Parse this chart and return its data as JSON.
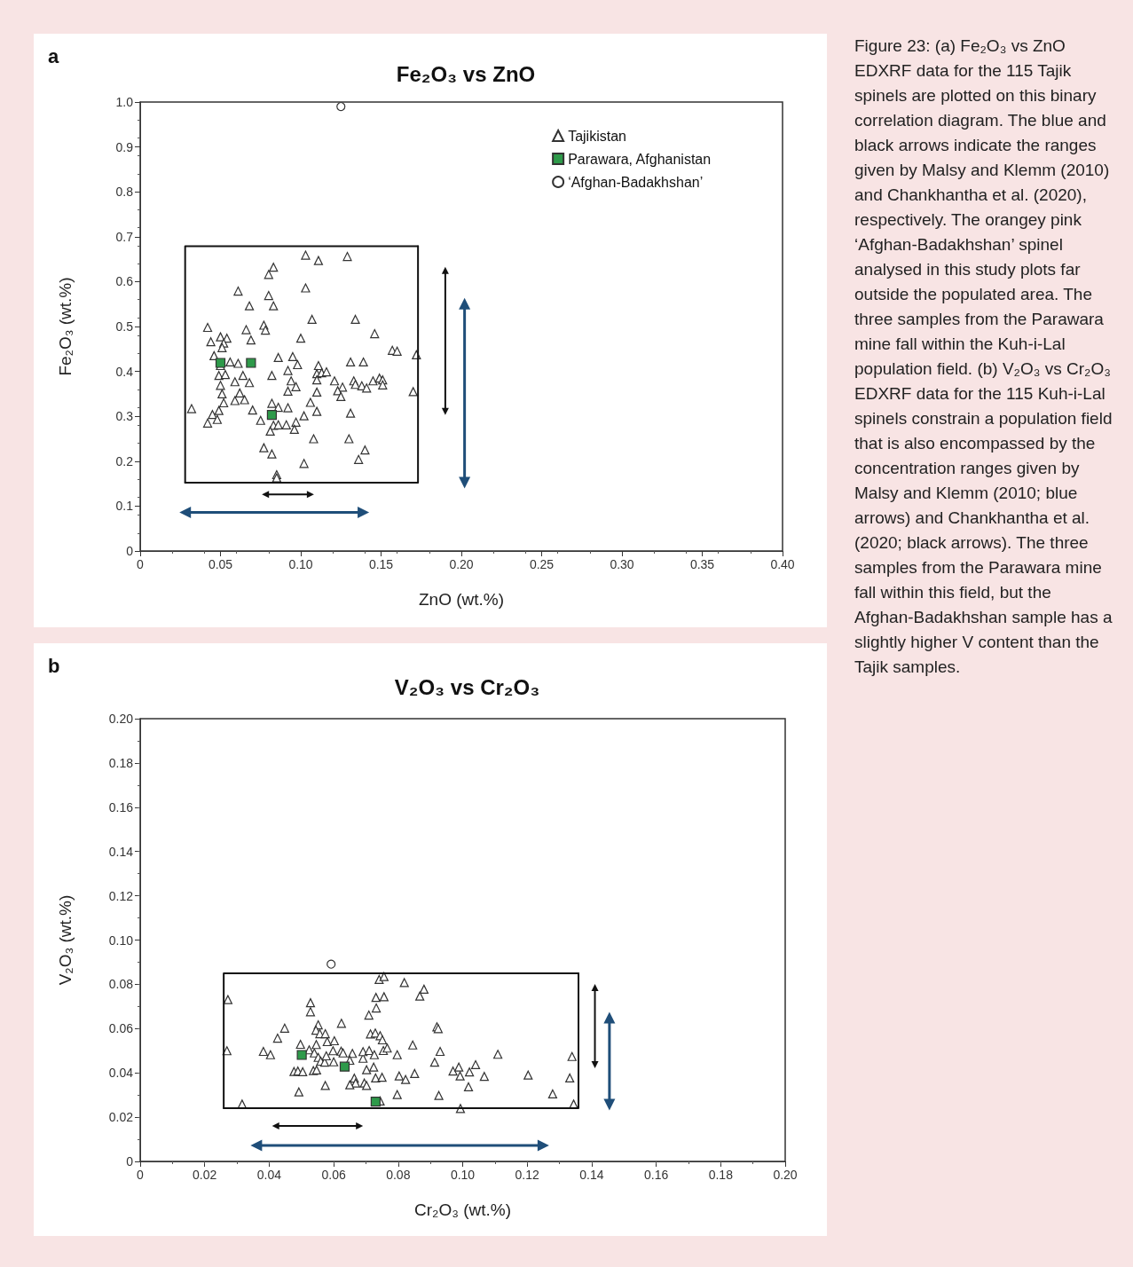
{
  "chart_data": [
    {
      "type": "scatter",
      "title": "Fe₂O₃ vs ZnO",
      "xlabel": "ZnO (wt.%)",
      "ylabel": "Fe₂O₃ (wt.%)",
      "annotations": [
        "a"
      ],
      "xlim": [
        0,
        0.4
      ],
      "xticks": [
        0,
        0.05,
        {
          "value": 0.1,
          "label": "0.10"
        },
        0.15,
        {
          "value": 0.2,
          "label": "0.20"
        },
        0.25,
        {
          "value": 0.3,
          "label": "0.30"
        },
        0.35,
        {
          "value": 0.4,
          "label": "0.40"
        }
      ],
      "ylim": [
        0,
        1
      ],
      "yticks": [
        0,
        0.1,
        0.2,
        0.3,
        0.4,
        0.5,
        0.6,
        0.7,
        0.8,
        0.9,
        {
          "value": 1,
          "label": "1.0"
        }
      ],
      "legend": "top right",
      "series": [
        {
          "name": "Tajikistan",
          "type": "scatter",
          "marker": "triangle",
          "color": "#ffffff",
          "x": [
            0.103,
            0.111,
            0.129,
            0.083,
            0.08,
            0.061,
            0.08,
            0.103,
            0.068,
            0.083,
            0.107,
            0.134,
            0.042,
            0.066,
            0.077,
            0.078,
            0.1,
            0.146,
            0.05,
            0.054,
            0.044,
            0.069,
            0.052,
            0.051,
            0.157,
            0.16,
            0.172,
            0.046,
            0.05,
            0.086,
            0.095,
            0.098,
            0.056,
            0.061,
            0.111,
            0.131,
            0.139,
            0.092,
            0.049,
            0.053,
            0.064,
            0.082,
            0.059,
            0.068,
            0.094,
            0.097,
            0.11,
            0.113,
            0.116,
            0.11,
            0.121,
            0.126,
            0.123,
            0.125,
            0.133,
            0.134,
            0.138,
            0.141,
            0.145,
            0.149,
            0.151,
            0.151,
            0.17,
            0.05,
            0.051,
            0.052,
            0.059,
            0.062,
            0.065,
            0.092,
            0.11,
            0.032,
            0.049,
            0.045,
            0.048,
            0.042,
            0.07,
            0.082,
            0.086,
            0.092,
            0.106,
            0.11,
            0.102,
            0.131,
            0.075,
            0.083,
            0.086,
            0.091,
            0.097,
            0.096,
            0.081,
            0.108,
            0.13,
            0.077,
            0.082,
            0.14,
            0.136,
            0.102,
            0.085,
            0.085
          ],
          "values": [
            0.659,
            0.647,
            0.656,
            0.632,
            0.616,
            0.579,
            0.569,
            0.586,
            0.546,
            0.546,
            0.516,
            0.516,
            0.498,
            0.493,
            0.503,
            0.492,
            0.474,
            0.484,
            0.477,
            0.474,
            0.466,
            0.47,
            0.463,
            0.453,
            0.447,
            0.445,
            0.437,
            0.435,
            0.413,
            0.431,
            0.433,
            0.415,
            0.421,
            0.418,
            0.413,
            0.421,
            0.421,
            0.402,
            0.391,
            0.393,
            0.391,
            0.391,
            0.377,
            0.375,
            0.379,
            0.366,
            0.395,
            0.397,
            0.399,
            0.381,
            0.379,
            0.365,
            0.357,
            0.344,
            0.379,
            0.371,
            0.368,
            0.363,
            0.379,
            0.385,
            0.381,
            0.37,
            0.355,
            0.369,
            0.35,
            0.33,
            0.335,
            0.352,
            0.337,
            0.356,
            0.354,
            0.317,
            0.313,
            0.304,
            0.293,
            0.285,
            0.314,
            0.329,
            0.32,
            0.319,
            0.331,
            0.311,
            0.301,
            0.307,
            0.291,
            0.28,
            0.281,
            0.281,
            0.287,
            0.271,
            0.267,
            0.25,
            0.25,
            0.23,
            0.216,
            0.225,
            0.204,
            0.195,
            0.17,
            0.163
          ]
        },
        {
          "name": "Parawara, Afghanistan",
          "type": "scatter",
          "marker": "square",
          "color": "#2e9a4a",
          "x": [
            0.05,
            0.069,
            0.082
          ],
          "values": [
            0.419,
            0.419,
            0.303
          ]
        },
        {
          "name": "‘Afghan-Badakhshan’",
          "type": "scatter",
          "marker": "circle",
          "color": "#ffffff",
          "x": [
            0.125
          ],
          "values": [
            0.99
          ]
        },
        {
          "type": "line",
          "marker": "none",
          "line_style": "solid",
          "color": "#111111",
          "x": [
            0.028,
            0.173,
            0.173
          ],
          "values": [
            0.152,
            0.152,
            0.679
          ]
        },
        {
          "type": "line",
          "marker": "none",
          "line_style": "solid",
          "color": "#111111",
          "x": [
            0.173,
            0.028,
            0.028
          ],
          "values": [
            0.679,
            0.679,
            0.152
          ]
        },
        {
          "type": "line",
          "marker": "triangle",
          "line_style": "solid",
          "color": "#111111",
          "x": [
            0.078,
            0.106
          ],
          "values": [
            0.126,
            0.126
          ]
        },
        {
          "type": "line",
          "marker": "triangle",
          "line_style": "solid",
          "color": "#1f4e79",
          "x": [
            0.028,
            0.139
          ],
          "values": [
            0.086,
            0.086
          ]
        },
        {
          "type": "line",
          "marker": "triangle",
          "line_style": "solid",
          "color": "#111111",
          "x": [
            0.19,
            0.19
          ],
          "values": [
            0.625,
            0.311
          ]
        },
        {
          "type": "line",
          "marker": "triangle",
          "line_style": "solid",
          "color": "#1f4e79",
          "x": [
            0.202,
            0.202
          ],
          "values": [
            0.551,
            0.152
          ]
        }
      ]
    },
    {
      "type": "scatter",
      "title": "V₂O₃ vs Cr₂O₃",
      "xlabel": "Cr₂O₃ (wt.%)",
      "ylabel": "V₂O₃ (wt.%)",
      "annotations": [
        "b"
      ],
      "xlim": [
        0,
        0.2
      ],
      "xticks": [
        0,
        0.02,
        0.04,
        0.06,
        0.08,
        {
          "value": 0.1,
          "label": "0.10"
        },
        0.12,
        0.14,
        0.16,
        0.18,
        {
          "value": 0.2,
          "label": "0.20"
        }
      ],
      "ylim": [
        0,
        0.2
      ],
      "yticks": [
        0,
        0.02,
        0.04,
        0.06,
        0.08,
        {
          "value": 0.1,
          "label": "0.10"
        },
        0.12,
        0.14,
        0.16,
        0.18,
        {
          "value": 0.2,
          "label": "0.20"
        }
      ],
      "series": [
        {
          "type": "scatter",
          "marker": "triangle",
          "color": "#ffffff",
          "x": [
            0.0272,
            0.0269,
            0.0316,
            0.0382,
            0.0404,
            0.0426,
            0.0448,
            0.0497,
            0.0528,
            0.0528,
            0.0492,
            0.0477,
            0.0489,
            0.0504,
            0.0537,
            0.0547,
            0.0524,
            0.054,
            0.0546,
            0.0552,
            0.0545,
            0.0557,
            0.0574,
            0.058,
            0.0602,
            0.0552,
            0.056,
            0.0572,
            0.0577,
            0.0598,
            0.06,
            0.0574,
            0.0624,
            0.0623,
            0.0629,
            0.0658,
            0.065,
            0.0691,
            0.0691,
            0.0714,
            0.0729,
            0.0744,
            0.0751,
            0.071,
            0.0726,
            0.0754,
            0.0766,
            0.0797,
            0.0702,
            0.0724,
            0.073,
            0.075,
            0.0803,
            0.0664,
            0.0668,
            0.065,
            0.0695,
            0.0702,
            0.0709,
            0.0732,
            0.0731,
            0.0756,
            0.0741,
            0.0756,
            0.0819,
            0.0797,
            0.0823,
            0.0744,
            0.088,
            0.0867,
            0.092,
            0.0924,
            0.0845,
            0.093,
            0.0913,
            0.1109,
            0.1339,
            0.0851,
            0.097,
            0.0988,
            0.0992,
            0.1021,
            0.104,
            0.1067,
            0.1203,
            0.1332,
            0.0926,
            0.1018,
            0.1279,
            0.0993,
            0.1344
          ],
          "values": [
            0.0731,
            0.05,
            0.0259,
            0.0497,
            0.0482,
            0.0557,
            0.0602,
            0.0529,
            0.0717,
            0.0676,
            0.0314,
            0.0406,
            0.0408,
            0.0405,
            0.041,
            0.0413,
            0.0504,
            0.049,
            0.0528,
            0.0617,
            0.0593,
            0.0577,
            0.0577,
            0.0541,
            0.0545,
            0.047,
            0.0453,
            0.0448,
            0.0477,
            0.05,
            0.045,
            0.0343,
            0.0624,
            0.0498,
            0.049,
            0.0488,
            0.0457,
            0.0466,
            0.0496,
            0.0576,
            0.058,
            0.0568,
            0.0549,
            0.0501,
            0.0482,
            0.0501,
            0.0512,
            0.0482,
            0.0414,
            0.0426,
            0.0377,
            0.038,
            0.0386,
            0.0376,
            0.0354,
            0.0346,
            0.0354,
            0.0343,
            0.0661,
            0.0693,
            0.0741,
            0.0744,
            0.0822,
            0.0835,
            0.0808,
            0.0302,
            0.037,
            0.0273,
            0.0778,
            0.0747,
            0.0608,
            0.06,
            0.0526,
            0.0497,
            0.0448,
            0.0484,
            0.0474,
            0.0397,
            0.0408,
            0.0426,
            0.0386,
            0.0404,
            0.0437,
            0.0384,
            0.039,
            0.0377,
            0.0298,
            0.0337,
            0.0305,
            0.0239,
            0.0259
          ]
        },
        {
          "type": "scatter",
          "marker": "square",
          "color": "#2e9a4a",
          "x": [
            0.0501,
            0.0634,
            0.073
          ],
          "values": [
            0.0481,
            0.0428,
            0.027
          ]
        },
        {
          "type": "scatter",
          "marker": "circle",
          "color": "#ffffff",
          "x": [
            0.0592
          ],
          "values": [
            0.0891
          ]
        },
        {
          "type": "line",
          "marker": "none",
          "line_style": "solid",
          "color": "#111111",
          "x": [
            0.0259,
            0.1359,
            0.1359
          ],
          "values": [
            0.024,
            0.024,
            0.085
          ]
        },
        {
          "type": "line",
          "marker": "none",
          "line_style": "solid",
          "color": "#111111",
          "x": [
            0.1359,
            0.0259,
            0.0259
          ],
          "values": [
            0.085,
            0.085,
            0.024
          ]
        },
        {
          "type": "line",
          "marker": "triangle",
          "line_style": "solid",
          "color": "#111111",
          "x": [
            0.042,
            0.068
          ],
          "values": [
            0.016,
            0.016
          ]
        },
        {
          "type": "line",
          "marker": "triangle",
          "line_style": "solid",
          "color": "#1f4e79",
          "x": [
            0.036,
            0.125
          ],
          "values": [
            0.0072,
            0.0072
          ]
        },
        {
          "type": "line",
          "marker": "triangle",
          "line_style": "solid",
          "color": "#111111",
          "x": [
            0.141,
            0.141
          ],
          "values": [
            0.0786,
            0.0437
          ]
        },
        {
          "type": "line",
          "marker": "triangle",
          "line_style": "solid",
          "color": "#1f4e79",
          "x": [
            0.1455,
            0.1455
          ],
          "values": [
            0.0649,
            0.0257
          ]
        }
      ]
    },
    {
      "type": "other",
      "annotations": [
        "Figure 23: (a) Fe₂O₃ vs ZnO EDXRF data for the 115 Tajik spinels are plotted on this binary correlation diagram. The blue and black arrows indicate the ranges given by Malsy and Klemm (2010) and Chankhantha et al. (2020), respectively. The orangey pink ‘Afghan-Badakhshan’ spinel analysed in this study plots far outside the populated area. The three samples from the Parawara mine fall within the Kuh-i-Lal population field. (b) V₂O₃ vs Cr₂O₃ EDXRF data for the 115 Kuh-i-Lal spinels constrain a population field that is also encompassed by the concentration ranges given by Malsy and Klemm (2010; blue arrows) and Chankhantha et al. (2020; black arrows). The three samples from the Parawara mine fall within this field, but the Afghan-Badakhshan sample has a slightly higher V content than the Tajik samples."
      ]
    }
  ]
}
